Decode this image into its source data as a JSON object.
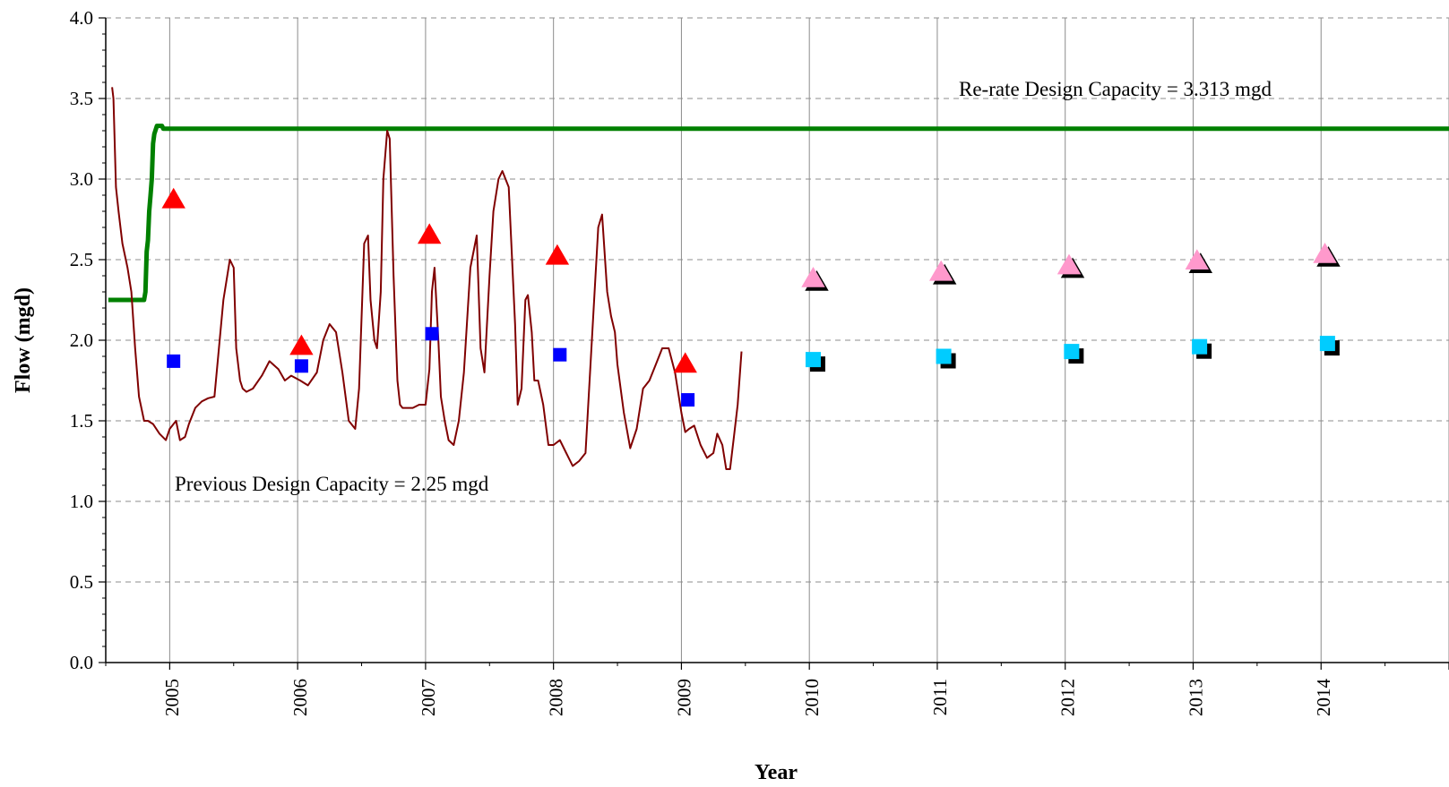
{
  "chart_data": {
    "type": "line",
    "xlabel": "Year",
    "ylabel": "Flow (mgd)",
    "xlim": [
      2004.5,
      2015.0
    ],
    "ylim": [
      0,
      4.0
    ],
    "y_ticks": [
      "0.0",
      "0.5",
      "1.0",
      "1.5",
      "2.0",
      "2.5",
      "3.0",
      "3.5",
      "4.0"
    ],
    "x_tick_labels": [
      "2005",
      "2006",
      "2007",
      "2008",
      "2009",
      "2010",
      "2011",
      "2012",
      "2013",
      "2014"
    ],
    "grid": {
      "horizontal": "dashed",
      "vertical": "solid"
    },
    "annotations": [
      {
        "text": "Re-rate Design Capacity = 3.313 mgd"
      },
      {
        "text": "Previous Design Capacity = 2.25 mgd"
      }
    ],
    "colors": {
      "flow_line": "#800000",
      "capacity_line": "#008000",
      "observed_triangle": "#ff0000",
      "observed_square": "#0000ff",
      "projected_triangle": "#ff99cc",
      "projected_square": "#00ccff",
      "projected_shadow": "#000000"
    },
    "series": [
      {
        "kind": "capacity",
        "x": [
          2004.52,
          2004.8,
          2004.81,
          2004.82,
          2004.83,
          2004.84,
          2004.85,
          2004.86,
          2004.87,
          2004.88,
          2004.9,
          2004.94,
          2004.95,
          2015.0
        ],
        "y": [
          2.25,
          2.25,
          2.3,
          2.55,
          2.62,
          2.8,
          2.9,
          3.0,
          3.22,
          3.28,
          3.33,
          3.33,
          3.313,
          3.313
        ]
      },
      {
        "kind": "flow",
        "x": [
          2004.55,
          2004.56,
          2004.58,
          2004.6,
          2004.63,
          2004.67,
          2004.7,
          2004.73,
          2004.76,
          2004.8,
          2004.83,
          2004.87,
          2004.92,
          2004.97,
          2005.0,
          2005.05,
          2005.08,
          2005.12,
          2005.15,
          2005.2,
          2005.25,
          2005.3,
          2005.35,
          2005.42,
          2005.47,
          2005.5,
          2005.52,
          2005.55,
          2005.57,
          2005.6,
          2005.65,
          2005.72,
          2005.78,
          2005.85,
          2005.9,
          2005.95,
          2006.02,
          2006.08,
          2006.15,
          2006.2,
          2006.25,
          2006.3,
          2006.35,
          2006.4,
          2006.45,
          2006.48,
          2006.52,
          2006.55,
          2006.57,
          2006.6,
          2006.62,
          2006.65,
          2006.67,
          2006.7,
          2006.72,
          2006.75,
          2006.78,
          2006.8,
          2006.82,
          2006.85,
          2006.9,
          2006.95,
          2007.0,
          2007.03,
          2007.05,
          2007.07,
          2007.1,
          2007.12,
          2007.15,
          2007.18,
          2007.22,
          2007.26,
          2007.3,
          2007.35,
          2007.4,
          2007.43,
          2007.46,
          2007.5,
          2007.53,
          2007.57,
          2007.6,
          2007.65,
          2007.7,
          2007.72,
          2007.75,
          2007.78,
          2007.8,
          2007.83,
          2007.85,
          2007.88,
          2007.92,
          2007.96,
          2008.0,
          2008.05,
          2008.1,
          2008.15,
          2008.2,
          2008.25,
          2008.3,
          2008.35,
          2008.38,
          2008.42,
          2008.45,
          2008.48,
          2008.5,
          2008.55,
          2008.6,
          2008.65,
          2008.7,
          2008.72,
          2008.75,
          2008.8,
          2008.85,
          2008.9,
          2008.95,
          2009.0,
          2009.03,
          2009.06,
          2009.1,
          2009.15,
          2009.2,
          2009.25,
          2009.28,
          2009.32,
          2009.35,
          2009.38,
          2009.41,
          2009.44,
          2009.47
        ],
        "y": [
          3.57,
          3.5,
          2.95,
          2.8,
          2.6,
          2.45,
          2.3,
          1.95,
          1.65,
          1.5,
          1.5,
          1.48,
          1.42,
          1.38,
          1.45,
          1.5,
          1.38,
          1.4,
          1.48,
          1.58,
          1.62,
          1.64,
          1.65,
          2.25,
          2.5,
          2.45,
          1.95,
          1.75,
          1.7,
          1.68,
          1.7,
          1.78,
          1.87,
          1.82,
          1.75,
          1.78,
          1.75,
          1.72,
          1.8,
          2.0,
          2.1,
          2.05,
          1.8,
          1.5,
          1.45,
          1.7,
          2.6,
          2.65,
          2.25,
          2.0,
          1.95,
          2.3,
          3.0,
          3.3,
          3.25,
          2.4,
          1.75,
          1.6,
          1.58,
          1.58,
          1.58,
          1.6,
          1.6,
          1.82,
          2.3,
          2.45,
          2.0,
          1.65,
          1.5,
          1.38,
          1.35,
          1.5,
          1.8,
          2.45,
          2.65,
          1.95,
          1.8,
          2.4,
          2.8,
          3.0,
          3.05,
          2.95,
          2.1,
          1.6,
          1.7,
          2.25,
          2.28,
          2.05,
          1.75,
          1.75,
          1.6,
          1.35,
          1.35,
          1.38,
          1.3,
          1.22,
          1.25,
          1.3,
          2.0,
          2.7,
          2.78,
          2.3,
          2.15,
          2.05,
          1.85,
          1.55,
          1.33,
          1.45,
          1.7,
          1.72,
          1.75,
          1.85,
          1.95,
          1.95,
          1.8,
          1.55,
          1.43,
          1.45,
          1.47,
          1.35,
          1.27,
          1.3,
          1.42,
          1.35,
          1.2,
          1.2,
          1.4,
          1.6,
          1.93
        ]
      },
      {
        "kind": "observed-triangle",
        "x": [
          2005.03,
          2006.03,
          2007.03,
          2008.03,
          2009.03
        ],
        "y": [
          2.87,
          1.96,
          2.65,
          2.52,
          1.85
        ]
      },
      {
        "kind": "observed-square",
        "x": [
          2005.03,
          2006.03,
          2007.05,
          2008.05,
          2009.05
        ],
        "y": [
          1.87,
          1.84,
          2.04,
          1.91,
          1.63
        ]
      },
      {
        "kind": "projected-triangle",
        "x": [
          2010.03,
          2011.03,
          2012.03,
          2013.03,
          2014.03
        ],
        "y": [
          2.38,
          2.42,
          2.46,
          2.49,
          2.53
        ]
      },
      {
        "kind": "projected-square",
        "x": [
          2010.03,
          2011.05,
          2012.05,
          2013.05,
          2014.05
        ],
        "y": [
          1.88,
          1.9,
          1.93,
          1.96,
          1.98
        ]
      }
    ]
  }
}
